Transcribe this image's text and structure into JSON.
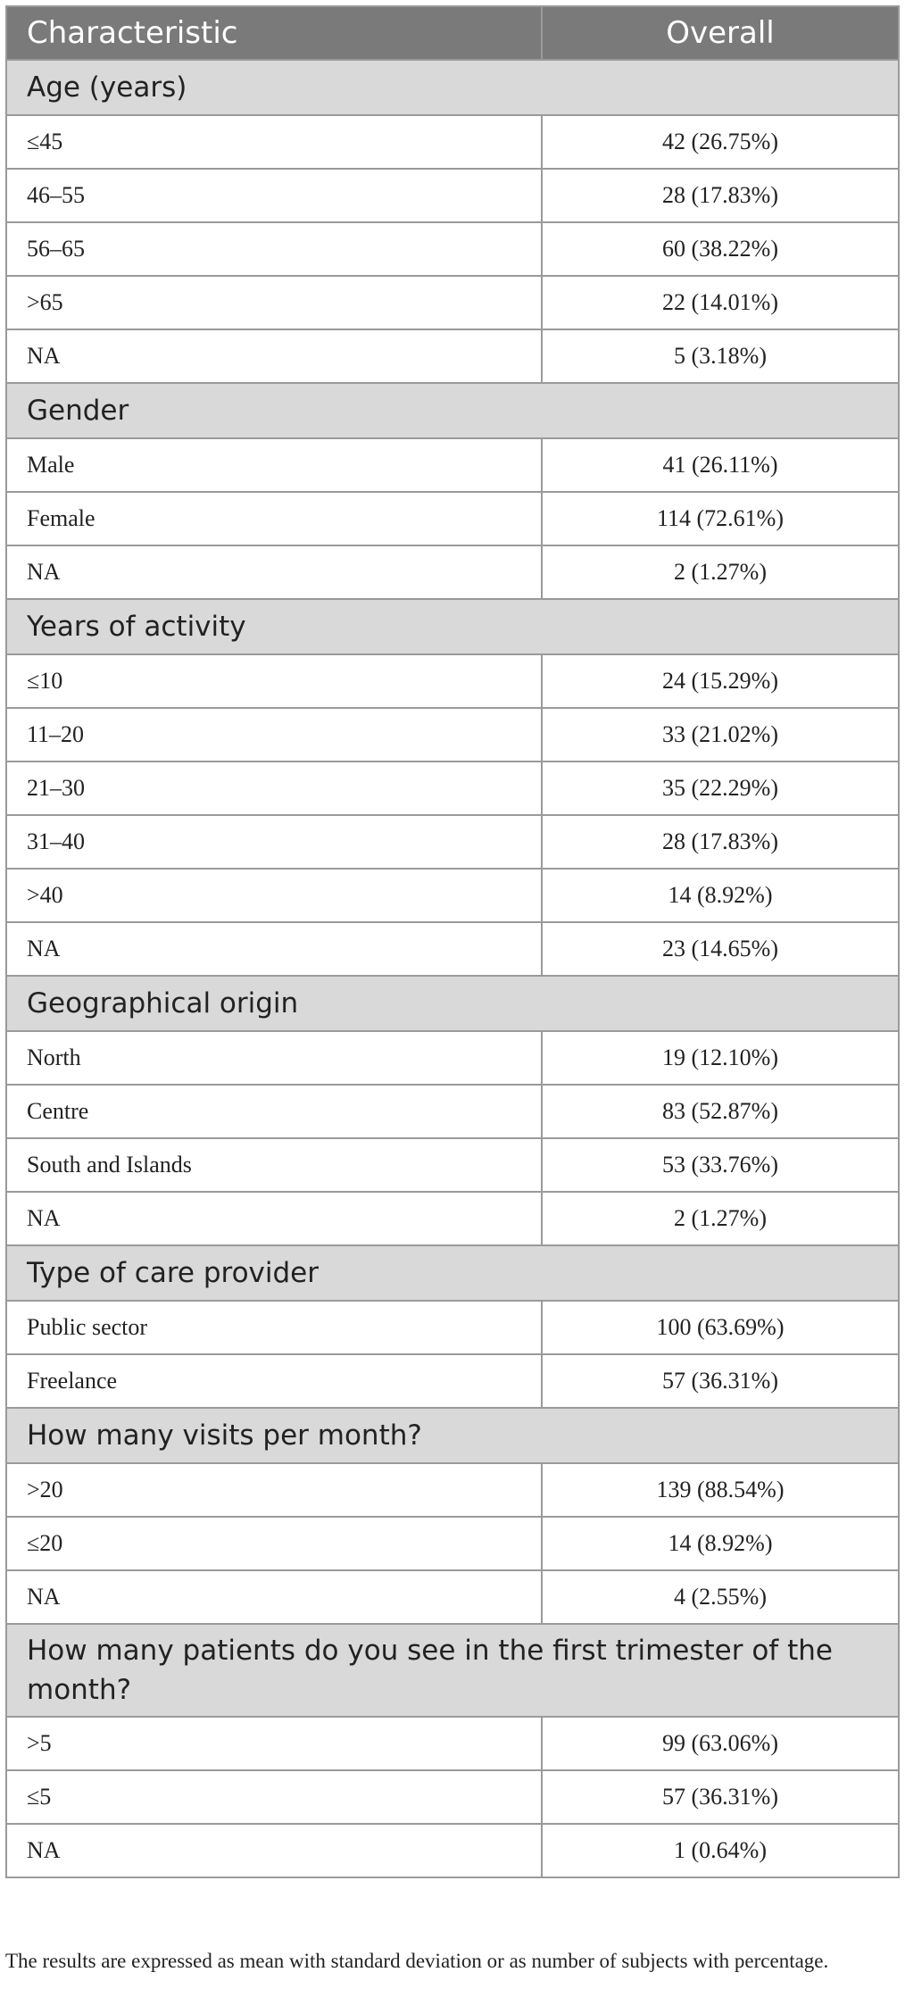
{
  "table": {
    "headers": [
      "Characteristic",
      "Overall"
    ],
    "sections": [
      {
        "title": "Age (years)",
        "rows": [
          {
            "label": "≤45",
            "value": "42 (26.75%)"
          },
          {
            "label": "46–55",
            "value": "28 (17.83%)"
          },
          {
            "label": "56–65",
            "value": "60 (38.22%)"
          },
          {
            "label": ">65",
            "value": "22 (14.01%)"
          },
          {
            "label": "NA",
            "value": "5 (3.18%)"
          }
        ]
      },
      {
        "title": "Gender",
        "rows": [
          {
            "label": "Male",
            "value": "41 (26.11%)"
          },
          {
            "label": "Female",
            "value": "114 (72.61%)"
          },
          {
            "label": "NA",
            "value": "2 (1.27%)"
          }
        ]
      },
      {
        "title": "Years of activity",
        "rows": [
          {
            "label": "≤10",
            "value": "24 (15.29%)"
          },
          {
            "label": "11–20",
            "value": "33 (21.02%)"
          },
          {
            "label": "21–30",
            "value": "35 (22.29%)"
          },
          {
            "label": "31–40",
            "value": "28 (17.83%)"
          },
          {
            "label": ">40",
            "value": "14 (8.92%)"
          },
          {
            "label": "NA",
            "value": "23 (14.65%)"
          }
        ]
      },
      {
        "title": "Geographical origin",
        "rows": [
          {
            "label": "North",
            "value": "19 (12.10%)"
          },
          {
            "label": "Centre",
            "value": "83 (52.87%)"
          },
          {
            "label": "South and Islands",
            "value": "53 (33.76%)"
          },
          {
            "label": "NA",
            "value": "2 (1.27%)"
          }
        ]
      },
      {
        "title": "Type of care provider",
        "rows": [
          {
            "label": "Public sector",
            "value": "100 (63.69%)"
          },
          {
            "label": "Freelance",
            "value": "57 (36.31%)"
          }
        ]
      },
      {
        "title": "How many visits per month?",
        "rows": [
          {
            "label": ">20",
            "value": "139 (88.54%)"
          },
          {
            "label": "≤20",
            "value": "14 (8.92%)"
          },
          {
            "label": "NA",
            "value": "4 (2.55%)"
          }
        ]
      },
      {
        "title": "How many patients do you see in the first trimester of the month?",
        "rows": [
          {
            "label": ">5",
            "value": "99 (63.06%)"
          },
          {
            "label": "≤5",
            "value": "57 (36.31%)"
          },
          {
            "label": "NA",
            "value": "1 (0.64%)"
          }
        ]
      }
    ]
  },
  "footnote": "The results are expressed as mean with standard deviation or as number of subjects with percentage."
}
